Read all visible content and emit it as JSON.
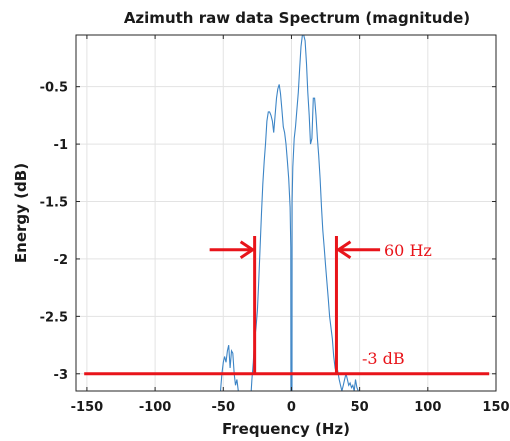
{
  "chart_data": {
    "type": "line",
    "title": "Azimuth raw data Spectrum (magnitude)",
    "xlabel": "Frequency (Hz)",
    "ylabel": "Energy (dB)",
    "xlim": [
      -158,
      150
    ],
    "ylim": [
      -3.15,
      -0.05
    ],
    "xticks": [
      -150,
      -100,
      -50,
      0,
      50,
      100,
      150
    ],
    "yticks": [
      -3,
      -2.5,
      -2,
      -1.5,
      -1,
      -0.5
    ],
    "xtick_labels": [
      "-150",
      "-100",
      "-50",
      "0",
      "50",
      "100",
      "150"
    ],
    "ytick_labels": [
      "-3",
      "-2.5",
      "-2",
      "-1.5",
      "-1",
      "-0.5"
    ],
    "grid": true,
    "series": [
      {
        "color": "#3d85c6",
        "x": [
          -52,
          -51,
          -50,
          -49,
          -48,
          -47,
          -46,
          -45,
          -44,
          -43,
          -42,
          -41,
          -40,
          -39,
          -29.5,
          -29,
          -28,
          -27,
          -26,
          -25,
          -24,
          -23,
          -22,
          -21,
          -20,
          -19,
          -18,
          -17,
          -16,
          -15,
          -14,
          -13,
          -12,
          -11,
          -10,
          -9,
          -8,
          -7,
          -6,
          -5,
          -4,
          -3,
          -2,
          -1,
          -0.5,
          -0.4,
          0,
          0.4,
          0.5,
          1,
          2,
          3,
          4,
          5,
          6,
          7,
          8,
          9,
          10,
          11,
          12,
          13,
          14,
          15,
          16,
          17,
          18,
          19,
          20,
          21,
          22,
          23,
          24,
          25,
          26,
          27,
          28,
          29,
          30,
          31,
          32,
          33,
          34,
          35,
          36,
          37,
          38,
          39,
          40,
          41,
          42,
          43,
          44,
          45,
          46,
          47,
          48,
          49
        ],
        "y": [
          -3.15,
          -3.0,
          -2.9,
          -2.85,
          -2.9,
          -2.8,
          -2.75,
          -2.95,
          -2.8,
          -2.82,
          -3.0,
          -3.1,
          -3.05,
          -3.15,
          -3.15,
          -3.05,
          -2.9,
          -2.7,
          -2.6,
          -2.45,
          -2.2,
          -1.9,
          -1.6,
          -1.35,
          -1.15,
          -1.0,
          -0.8,
          -0.72,
          -0.72,
          -0.75,
          -0.8,
          -0.9,
          -0.75,
          -0.6,
          -0.52,
          -0.48,
          -0.56,
          -0.7,
          -0.85,
          -0.9,
          -1.0,
          -1.15,
          -1.3,
          -1.55,
          -1.9,
          -3.15,
          -3.15,
          -3.15,
          -1.5,
          -1.2,
          -0.95,
          -0.85,
          -0.7,
          -0.55,
          -0.35,
          -0.15,
          -0.05,
          -0.05,
          -0.1,
          -0.3,
          -0.55,
          -0.75,
          -1.0,
          -0.95,
          -0.6,
          -0.6,
          -0.75,
          -0.95,
          -1.1,
          -1.3,
          -1.55,
          -1.75,
          -1.9,
          -2.05,
          -2.2,
          -2.35,
          -2.5,
          -2.6,
          -2.7,
          -2.85,
          -2.95,
          -3.0,
          -2.98,
          -3.05,
          -3.1,
          -3.15,
          -3.1,
          -3.05,
          -3.0,
          -3.05,
          -3.1,
          -3.08,
          -3.12,
          -3.1,
          -3.15,
          -3.05,
          -3.12,
          -3.15
        ]
      }
    ],
    "annotations": {
      "threshold_label": "-3 dB",
      "bandwidth_label": "60 Hz",
      "threshold_y": -3,
      "threshold_x_range": [
        -152,
        145
      ],
      "left_marker_x": -27,
      "right_marker_x": 33,
      "marker_top_y": -1.8,
      "arrow_y": -1.92,
      "left_arrow_from_x": -60,
      "right_arrow_to_x": 65
    }
  }
}
